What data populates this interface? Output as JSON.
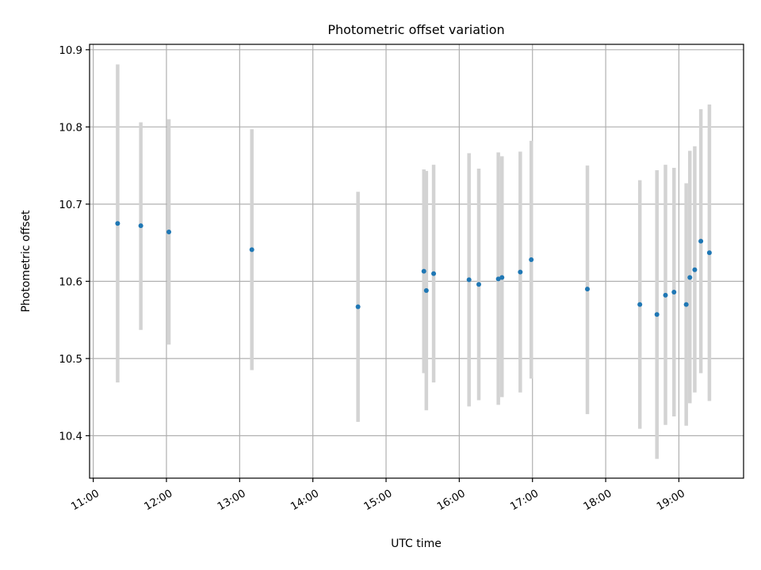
{
  "chart_data": {
    "type": "scatter",
    "title": "Photometric offset variation",
    "xlabel": "UTC time",
    "ylabel": "Photometric offset",
    "xlim": [
      "10:57",
      "19:53"
    ],
    "ylim": [
      10.345,
      10.907
    ],
    "grid": true,
    "x_ticks": [
      "11:00",
      "12:00",
      "13:00",
      "14:00",
      "15:00",
      "16:00",
      "17:00",
      "18:00",
      "19:00"
    ],
    "y_ticks": [
      10.4,
      10.5,
      10.6,
      10.7,
      10.8,
      10.9
    ],
    "y_tick_labels": [
      "10.4",
      "10.5",
      "10.6",
      "10.7",
      "10.8",
      "10.9"
    ],
    "point_color": "#1f77b4",
    "errorbar_color": "#d3d3d3",
    "points": [
      {
        "time": "11:20",
        "y": 10.675,
        "low": 10.469,
        "high": 10.881
      },
      {
        "time": "11:39",
        "y": 10.672,
        "low": 10.537,
        "high": 10.806
      },
      {
        "time": "12:02",
        "y": 10.664,
        "low": 10.518,
        "high": 10.81
      },
      {
        "time": "13:10",
        "y": 10.641,
        "low": 10.485,
        "high": 10.797
      },
      {
        "time": "14:37",
        "y": 10.567,
        "low": 10.418,
        "high": 10.716
      },
      {
        "time": "15:31",
        "y": 10.613,
        "low": 10.481,
        "high": 10.745
      },
      {
        "time": "15:33",
        "y": 10.588,
        "low": 10.433,
        "high": 10.743
      },
      {
        "time": "15:39",
        "y": 10.61,
        "low": 10.469,
        "high": 10.751
      },
      {
        "time": "16:08",
        "y": 10.602,
        "low": 10.438,
        "high": 10.766
      },
      {
        "time": "16:16",
        "y": 10.596,
        "low": 10.446,
        "high": 10.746
      },
      {
        "time": "16:32",
        "y": 10.603,
        "low": 10.44,
        "high": 10.767
      },
      {
        "time": "16:35",
        "y": 10.605,
        "low": 10.45,
        "high": 10.762
      },
      {
        "time": "16:50",
        "y": 10.612,
        "low": 10.456,
        "high": 10.768
      },
      {
        "time": "16:59",
        "y": 10.628,
        "low": 10.474,
        "high": 10.782
      },
      {
        "time": "17:45",
        "y": 10.59,
        "low": 10.428,
        "high": 10.75
      },
      {
        "time": "18:28",
        "y": 10.57,
        "low": 10.409,
        "high": 10.731
      },
      {
        "time": "18:42",
        "y": 10.557,
        "low": 10.37,
        "high": 10.744
      },
      {
        "time": "18:49",
        "y": 10.582,
        "low": 10.414,
        "high": 10.751
      },
      {
        "time": "18:56",
        "y": 10.586,
        "low": 10.425,
        "high": 10.747
      },
      {
        "time": "19:06",
        "y": 10.57,
        "low": 10.413,
        "high": 10.727
      },
      {
        "time": "19:09",
        "y": 10.605,
        "low": 10.442,
        "high": 10.769
      },
      {
        "time": "19:13",
        "y": 10.615,
        "low": 10.456,
        "high": 10.775
      },
      {
        "time": "19:18",
        "y": 10.652,
        "low": 10.481,
        "high": 10.823
      },
      {
        "time": "19:25",
        "y": 10.637,
        "low": 10.445,
        "high": 10.829
      }
    ]
  }
}
